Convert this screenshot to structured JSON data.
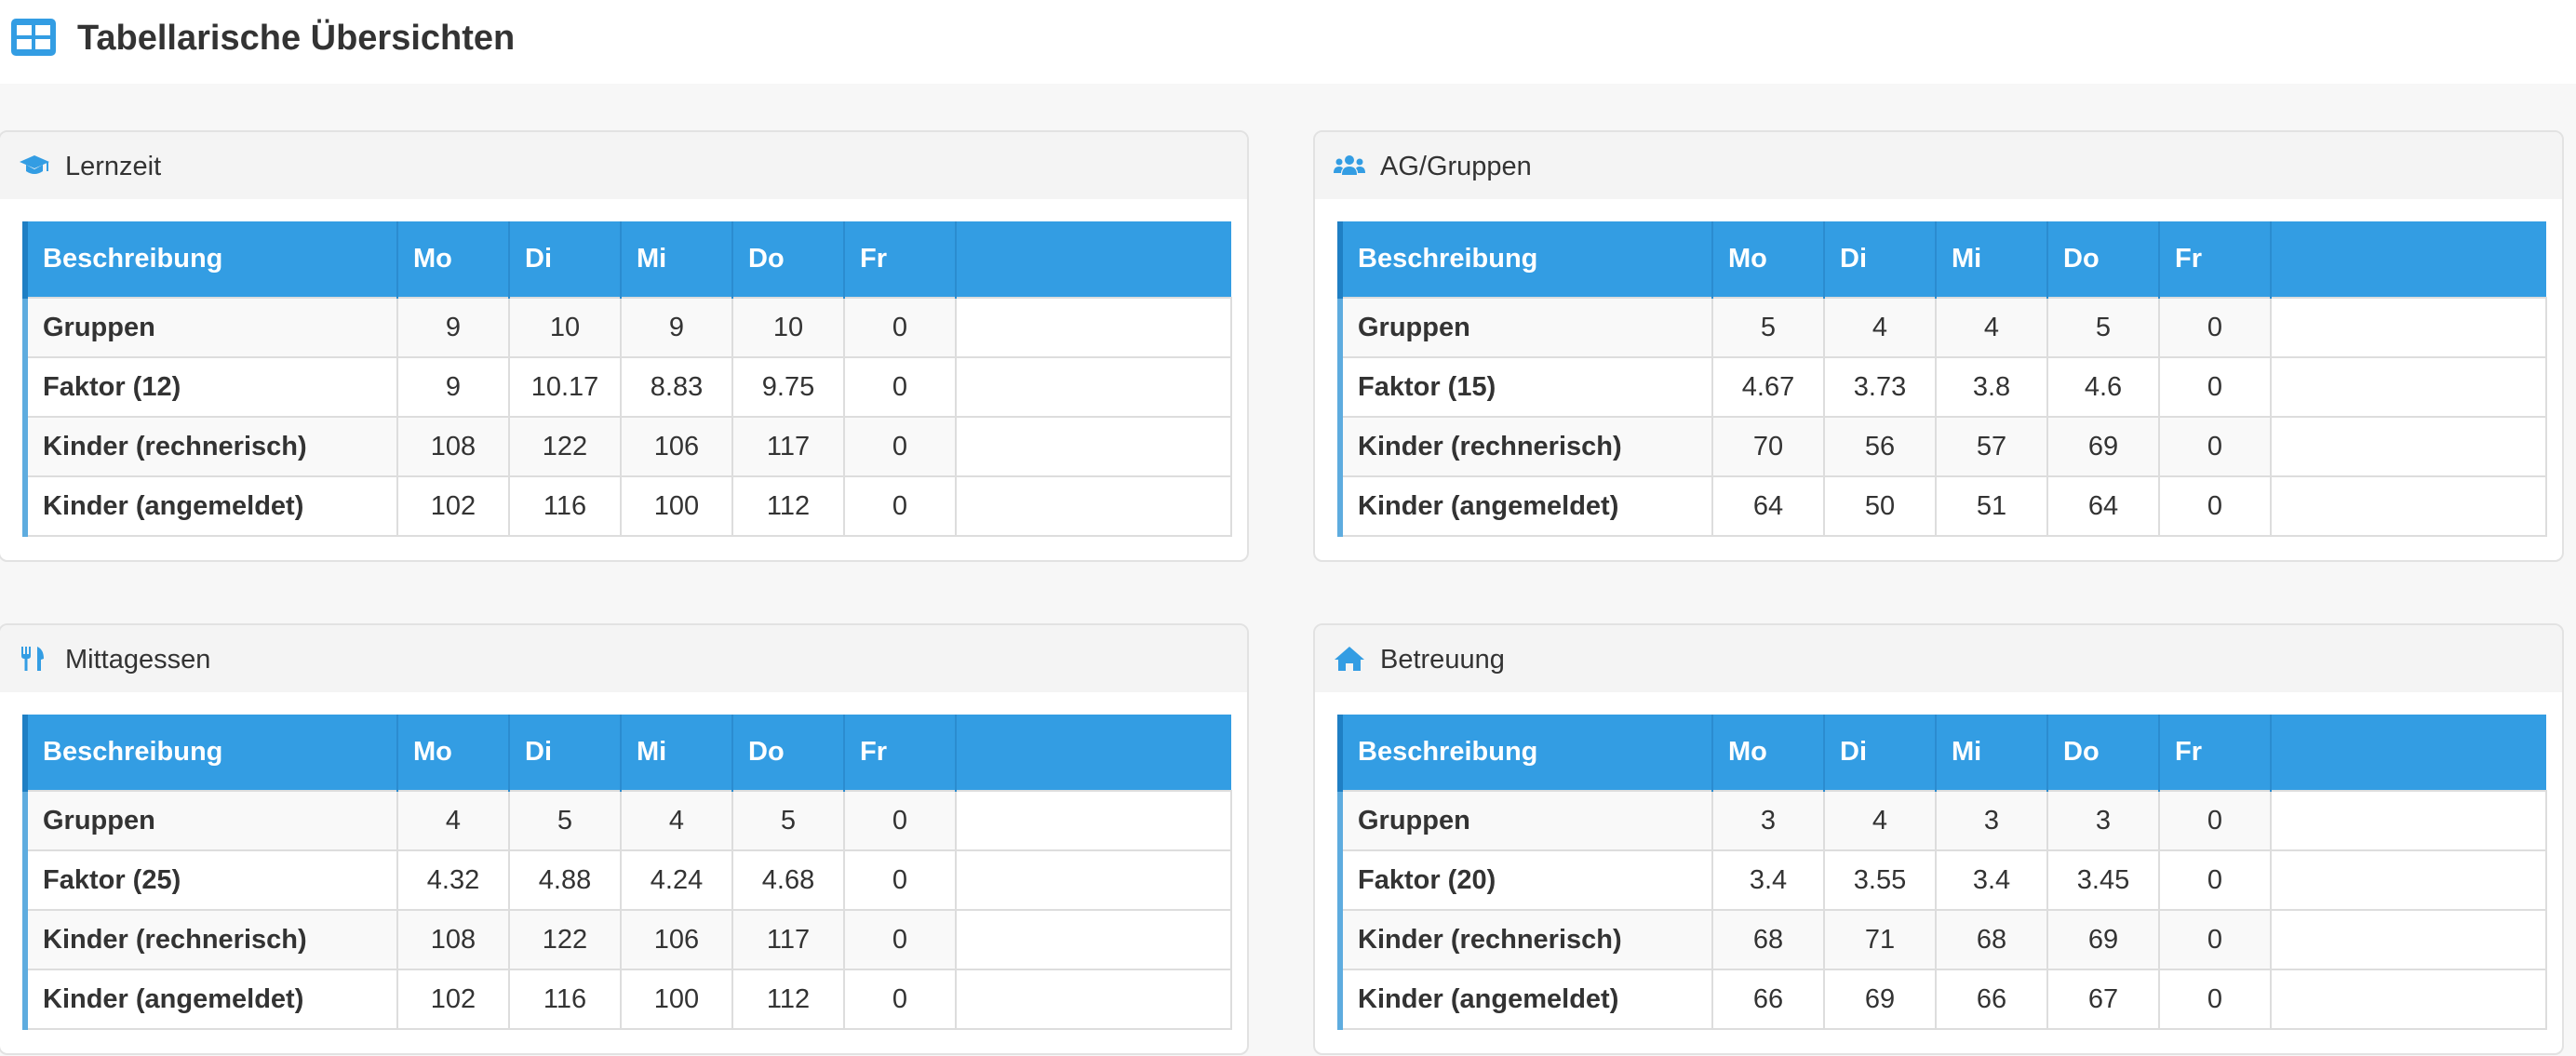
{
  "page": {
    "title": "Tabellarische Übersichten",
    "icon": "table-icon"
  },
  "colors": {
    "accent": "#339de3",
    "row_marker": "#5eacdf",
    "panel_header_bg": "#f4f4f4"
  },
  "columns": {
    "desc": "Beschreibung",
    "mo": "Mo",
    "di": "Di",
    "mi": "Mi",
    "do": "Do",
    "fr": "Fr"
  },
  "panels": {
    "lernzeit": {
      "title": "Lernzeit",
      "icon": "graduation-cap-icon",
      "rows": [
        {
          "label": "Gruppen",
          "mo": "9",
          "di": "10",
          "mi": "9",
          "do": "10",
          "fr": "0"
        },
        {
          "label": "Faktor (12)",
          "mo": "9",
          "di": "10.17",
          "mi": "8.83",
          "do": "9.75",
          "fr": "0"
        },
        {
          "label": "Kinder (rechnerisch)",
          "mo": "108",
          "di": "122",
          "mi": "106",
          "do": "117",
          "fr": "0"
        },
        {
          "label": "Kinder (angemeldet)",
          "mo": "102",
          "di": "116",
          "mi": "100",
          "do": "112",
          "fr": "0"
        }
      ]
    },
    "ag": {
      "title": "AG/Gruppen",
      "icon": "users-icon",
      "rows": [
        {
          "label": "Gruppen",
          "mo": "5",
          "di": "4",
          "mi": "4",
          "do": "5",
          "fr": "0"
        },
        {
          "label": "Faktor (15)",
          "mo": "4.67",
          "di": "3.73",
          "mi": "3.8",
          "do": "4.6",
          "fr": "0"
        },
        {
          "label": "Kinder (rechnerisch)",
          "mo": "70",
          "di": "56",
          "mi": "57",
          "do": "69",
          "fr": "0"
        },
        {
          "label": "Kinder (angemeldet)",
          "mo": "64",
          "di": "50",
          "mi": "51",
          "do": "64",
          "fr": "0"
        }
      ]
    },
    "mittagessen": {
      "title": "Mittagessen",
      "icon": "utensils-icon",
      "rows": [
        {
          "label": "Gruppen",
          "mo": "4",
          "di": "5",
          "mi": "4",
          "do": "5",
          "fr": "0"
        },
        {
          "label": "Faktor (25)",
          "mo": "4.32",
          "di": "4.88",
          "mi": "4.24",
          "do": "4.68",
          "fr": "0"
        },
        {
          "label": "Kinder (rechnerisch)",
          "mo": "108",
          "di": "122",
          "mi": "106",
          "do": "117",
          "fr": "0"
        },
        {
          "label": "Kinder (angemeldet)",
          "mo": "102",
          "di": "116",
          "mi": "100",
          "do": "112",
          "fr": "0"
        }
      ]
    },
    "betreuung": {
      "title": "Betreuung",
      "icon": "home-icon",
      "rows": [
        {
          "label": "Gruppen",
          "mo": "3",
          "di": "4",
          "mi": "3",
          "do": "3",
          "fr": "0"
        },
        {
          "label": "Faktor (20)",
          "mo": "3.4",
          "di": "3.55",
          "mi": "3.4",
          "do": "3.45",
          "fr": "0"
        },
        {
          "label": "Kinder (rechnerisch)",
          "mo": "68",
          "di": "71",
          "mi": "68",
          "do": "69",
          "fr": "0"
        },
        {
          "label": "Kinder (angemeldet)",
          "mo": "66",
          "di": "69",
          "mi": "66",
          "do": "67",
          "fr": "0"
        }
      ]
    }
  }
}
